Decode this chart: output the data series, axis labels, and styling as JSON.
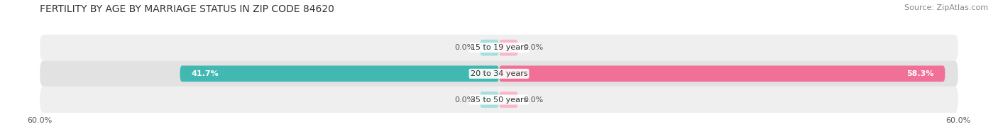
{
  "title": "FERTILITY BY AGE BY MARRIAGE STATUS IN ZIP CODE 84620",
  "source": "Source: ZipAtlas.com",
  "categories": [
    "15 to 19 years",
    "20 to 34 years",
    "35 to 50 years"
  ],
  "married_values": [
    0.0,
    41.7,
    0.0
  ],
  "unmarried_values": [
    0.0,
    58.3,
    0.0
  ],
  "married_color": "#41b8b2",
  "unmarried_color": "#f07098",
  "married_color_light": "#a8dedd",
  "unmarried_color_light": "#f8b8cc",
  "row_bg_odd": "#efefef",
  "row_bg_even": "#e2e2e2",
  "xlim": 60.0,
  "title_fontsize": 10,
  "source_fontsize": 8,
  "label_fontsize": 8,
  "val_fontsize": 8,
  "tick_fontsize": 8,
  "bar_height": 0.62,
  "fig_width": 14.06,
  "fig_height": 1.96,
  "dpi": 100
}
